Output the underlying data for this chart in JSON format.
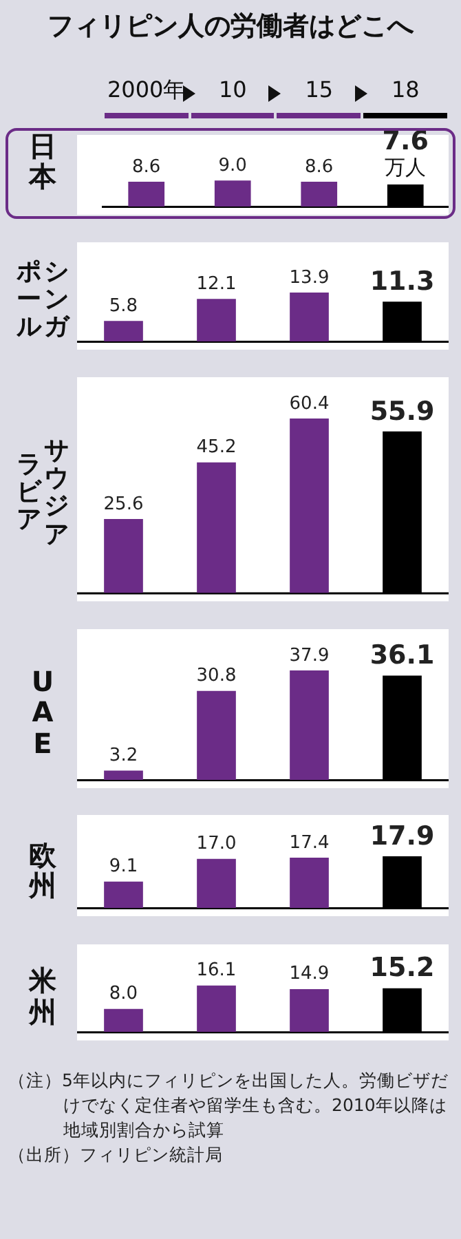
{
  "chart_data": [
    {
      "type": "bar",
      "title": "フィリピン人の労働者はどこへ",
      "ylabel": "日本",
      "categories": [
        "2000年",
        "10",
        "15",
        "18"
      ],
      "values": [
        8.6,
        9.0,
        8.6,
        7.6
      ],
      "value_labels": [
        "8.6",
        "9.0",
        "8.6",
        "7.6"
      ],
      "colors": [
        "#6b2c87",
        "#6b2c87",
        "#6b2c87",
        "#000000"
      ],
      "tick_labels": "x",
      "annotations": [
        {
          "text": "万人",
          "x": "18",
          "y": 7.6
        }
      ]
    },
    {
      "type": "bar",
      "ylabel": "シンガポール",
      "categories": [
        null,
        null,
        null,
        null
      ],
      "values": [
        5.8,
        12.1,
        13.9,
        11.3
      ],
      "value_labels": [
        "5.8",
        "12.1",
        "13.9",
        "11.3"
      ],
      "colors": [
        "#6b2c87",
        "#6b2c87",
        "#6b2c87",
        "#000000"
      ],
      "tick_labels": false
    },
    {
      "type": "bar",
      "ylabel": "サウジアラビア",
      "categories": [
        null,
        null,
        null,
        null
      ],
      "values": [
        25.6,
        45.2,
        60.4,
        55.9
      ],
      "value_labels": [
        "25.6",
        "45.2",
        "60.4",
        "55.9"
      ],
      "colors": [
        "#6b2c87",
        "#6b2c87",
        "#6b2c87",
        "#000000"
      ],
      "tick_labels": false
    },
    {
      "type": "bar",
      "ylabel": "UAE",
      "categories": [
        null,
        null,
        null,
        null
      ],
      "values": [
        3.2,
        30.8,
        37.9,
        36.1
      ],
      "value_labels": [
        "3.2",
        "30.8",
        "37.9",
        "36.1"
      ],
      "colors": [
        "#6b2c87",
        "#6b2c87",
        "#6b2c87",
        "#000000"
      ],
      "tick_labels": false
    },
    {
      "type": "bar",
      "ylabel": "欧州",
      "categories": [
        null,
        null,
        null,
        null
      ],
      "values": [
        9.1,
        17.0,
        17.4,
        17.9
      ],
      "value_labels": [
        "9.1",
        "17.0",
        "17.4",
        "17.9"
      ],
      "colors": [
        "#6b2c87",
        "#6b2c87",
        "#6b2c87",
        "#000000"
      ],
      "tick_labels": false
    },
    {
      "type": "bar",
      "ylabel": "米州",
      "categories": [
        null,
        null,
        null,
        null
      ],
      "values": [
        8.0,
        16.1,
        14.9,
        15.2
      ],
      "value_labels": [
        "8.0",
        "16.1",
        "14.9",
        "15.2"
      ],
      "colors": [
        "#6b2c87",
        "#6b2c87",
        "#6b2c87",
        "#000000"
      ],
      "tick_labels": false,
      "annotations": [
        "（注）5年以内にフィリピンを出国した人。労働ビザだけでなく定住者や留学生も含む。2010年以降は地域別割合から試算",
        "（出所）フィリピン統計局"
      ]
    }
  ]
}
